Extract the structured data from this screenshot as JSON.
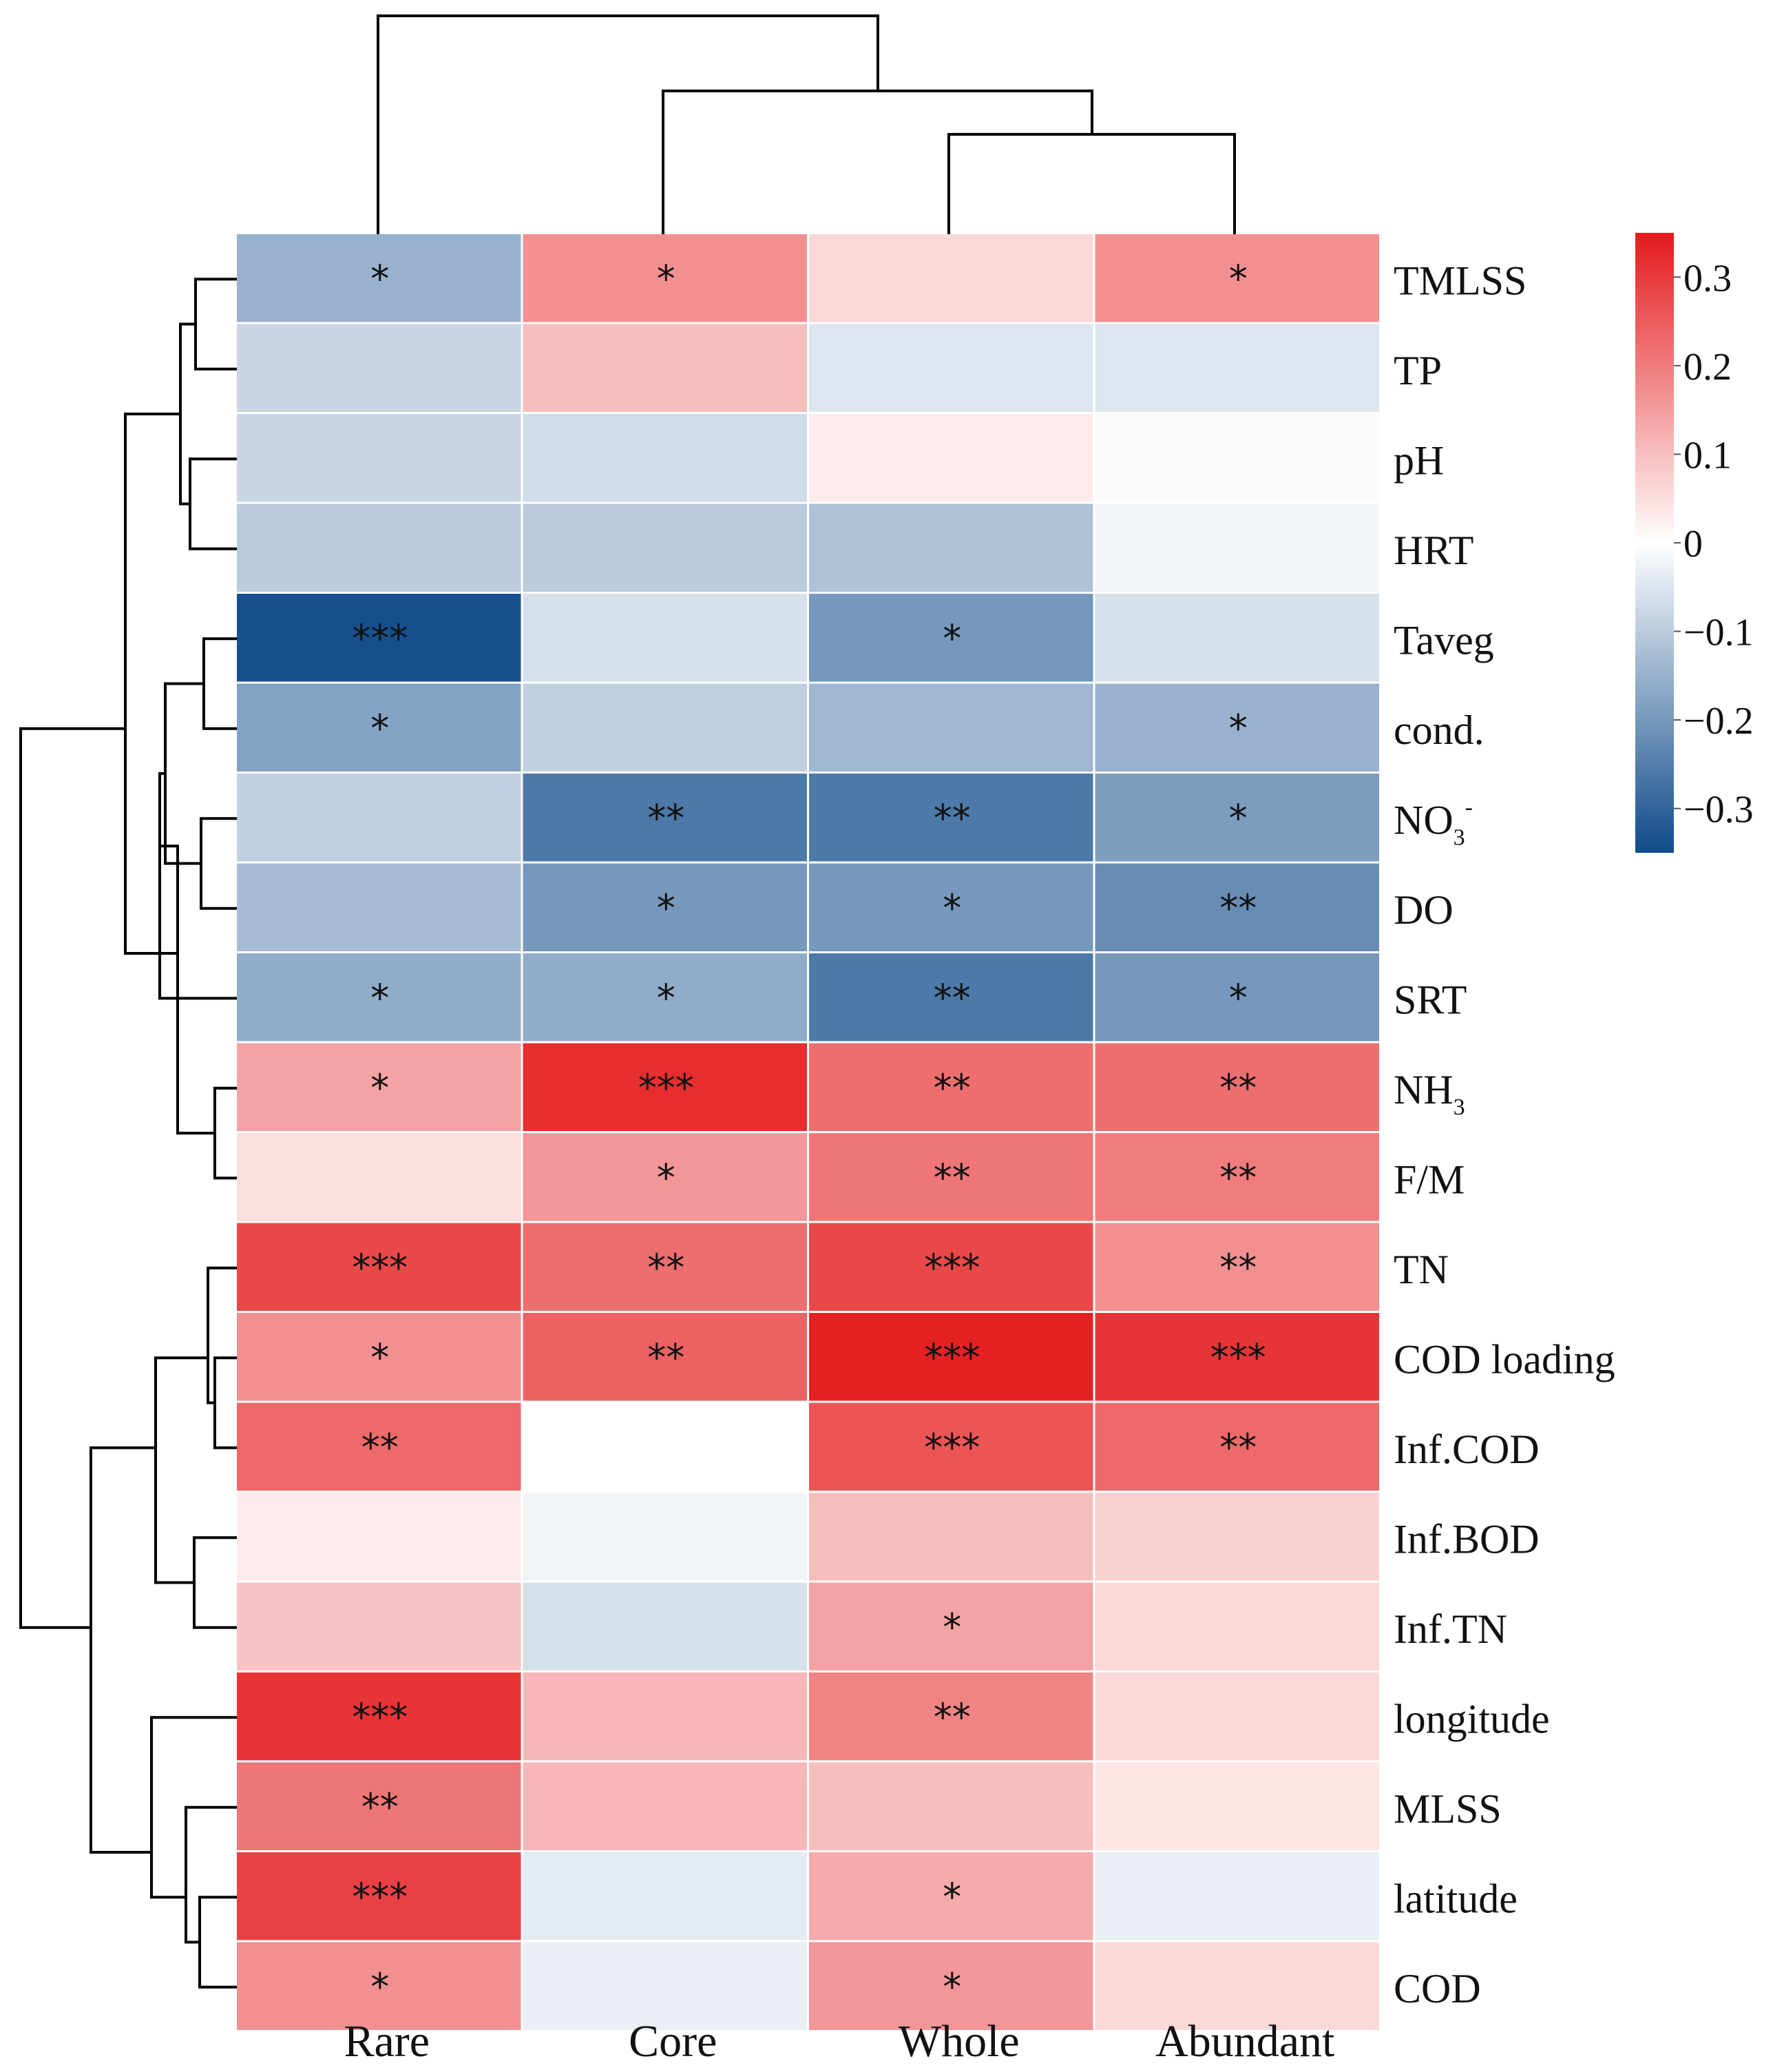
{
  "chart_data": {
    "type": "heatmap",
    "title": "",
    "columns": [
      "Rare",
      "Core",
      "Whole",
      "Abundant"
    ],
    "rows": [
      {
        "label": "TMLSS",
        "sub": "",
        "sup": "",
        "values": [
          -0.15,
          0.17,
          0.06,
          0.17
        ],
        "stars": [
          "*",
          "*",
          "",
          "*"
        ]
      },
      {
        "label": "TP",
        "sub": "",
        "sup": "",
        "values": [
          -0.08,
          0.1,
          -0.05,
          -0.05
        ],
        "stars": [
          "",
          "",
          "",
          ""
        ]
      },
      {
        "label": "pH",
        "sub": "",
        "sup": "",
        "values": [
          -0.08,
          -0.07,
          0.03,
          -0.01
        ],
        "stars": [
          "",
          "",
          "",
          ""
        ]
      },
      {
        "label": "HRT",
        "sub": "",
        "sup": "",
        "values": [
          -0.1,
          -0.1,
          -0.12,
          -0.02
        ],
        "stars": [
          "",
          "",
          "",
          ""
        ]
      },
      {
        "label": "Taveg",
        "sub": "",
        "sup": "",
        "values": [
          -0.34,
          -0.06,
          -0.2,
          -0.06
        ],
        "stars": [
          "***",
          "",
          "*",
          ""
        ]
      },
      {
        "label": "cond.",
        "sub": "",
        "sup": "",
        "values": [
          -0.18,
          -0.09,
          -0.14,
          -0.15
        ],
        "stars": [
          "*",
          "",
          "",
          "*"
        ]
      },
      {
        "label": "NO",
        "sub": "3",
        "sup": "-",
        "values": [
          -0.09,
          -0.26,
          -0.26,
          -0.19
        ],
        "stars": [
          "",
          "**",
          "**",
          "*"
        ]
      },
      {
        "label": "DO",
        "sub": "",
        "sup": "",
        "values": [
          -0.13,
          -0.2,
          -0.2,
          -0.22
        ],
        "stars": [
          "",
          "*",
          "*",
          "**"
        ]
      },
      {
        "label": "SRT",
        "sub": "",
        "sup": "",
        "values": [
          -0.16,
          -0.16,
          -0.26,
          -0.2
        ],
        "stars": [
          "*",
          "*",
          "**",
          "*"
        ]
      },
      {
        "label": "NH",
        "sub": "3",
        "sup": "",
        "values": [
          0.14,
          0.32,
          0.22,
          0.22
        ],
        "stars": [
          "*",
          "***",
          "**",
          "**"
        ]
      },
      {
        "label": "F/M",
        "sub": "",
        "sup": "",
        "values": [
          0.05,
          0.16,
          0.21,
          0.2
        ],
        "stars": [
          "",
          "*",
          "**",
          "**"
        ]
      },
      {
        "label": "TN",
        "sub": "",
        "sup": "",
        "values": [
          0.28,
          0.22,
          0.28,
          0.17
        ],
        "stars": [
          "***",
          "**",
          "***",
          "**"
        ]
      },
      {
        "label": "COD loading",
        "sub": "",
        "sup": "",
        "values": [
          0.17,
          0.24,
          0.34,
          0.31
        ],
        "stars": [
          "*",
          "**",
          "***",
          "***"
        ]
      },
      {
        "label": "Inf.COD",
        "sub": "",
        "sup": "",
        "values": [
          0.23,
          0.0,
          0.26,
          0.23
        ],
        "stars": [
          "**",
          "",
          "***",
          "**"
        ]
      },
      {
        "label": "Inf.BOD",
        "sub": "",
        "sup": "",
        "values": [
          0.03,
          -0.02,
          0.1,
          0.07
        ],
        "stars": [
          "",
          "",
          "",
          ""
        ]
      },
      {
        "label": "Inf.TN",
        "sub": "",
        "sup": "",
        "values": [
          0.09,
          -0.06,
          0.14,
          0.06
        ],
        "stars": [
          "",
          "",
          "*",
          ""
        ]
      },
      {
        "label": "longitude",
        "sub": "",
        "sup": "",
        "values": [
          0.31,
          0.11,
          0.19,
          0.06
        ],
        "stars": [
          "***",
          "",
          "**",
          ""
        ]
      },
      {
        "label": "MLSS",
        "sub": "",
        "sup": "",
        "values": [
          0.21,
          0.11,
          0.1,
          0.04
        ],
        "stars": [
          "**",
          "",
          "",
          ""
        ]
      },
      {
        "label": "latitude",
        "sub": "",
        "sup": "",
        "values": [
          0.29,
          -0.04,
          0.13,
          -0.03
        ],
        "stars": [
          "***",
          "",
          "*",
          ""
        ]
      },
      {
        "label": "COD",
        "sub": "",
        "sup": "",
        "values": [
          0.17,
          -0.03,
          0.16,
          0.06
        ],
        "stars": [
          "*",
          "",
          "*",
          ""
        ]
      }
    ],
    "color_scale": {
      "min": -0.35,
      "max": 0.35,
      "low_color": "#0f4a8a",
      "mid_color": "#ffffff",
      "high_color": "#e41a1c",
      "ticks": [
        0.3,
        0.2,
        0.1,
        0,
        -0.1,
        -0.2,
        -0.3
      ],
      "tick_labels": [
        "0.3",
        "0.2",
        "0.1",
        "0",
        "−0.1",
        "−0.2",
        "−0.3"
      ]
    },
    "column_dendrogram": "top",
    "row_dendrogram": "left",
    "legend_position": "right"
  }
}
